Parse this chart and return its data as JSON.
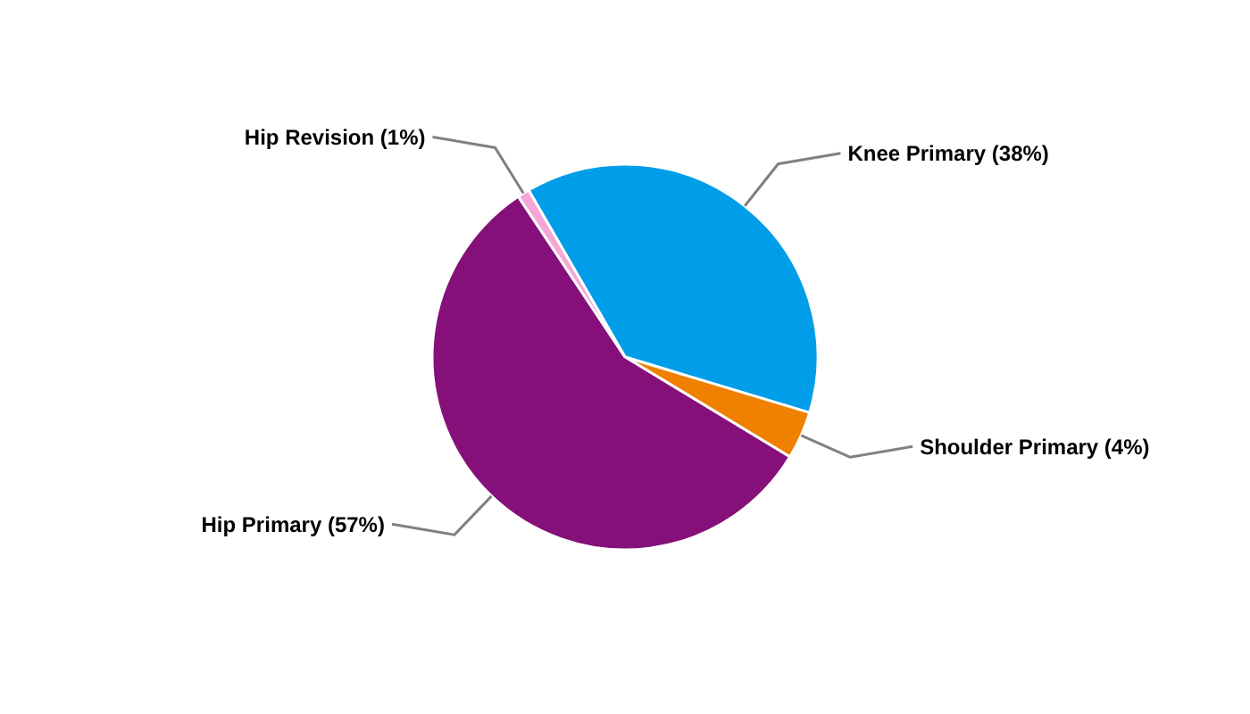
{
  "chart_data": {
    "type": "pie",
    "categories": [
      "Knee Primary",
      "Shoulder Primary",
      "Hip Primary",
      "Hip Revision"
    ],
    "values": [
      38,
      4,
      57,
      1
    ],
    "value_labels": [
      "(38%)",
      "(4%)",
      "(57%)",
      "(1%)"
    ],
    "colors": [
      "#009ee8",
      "#f08000",
      "#861079",
      "#f4a6d7"
    ]
  }
}
